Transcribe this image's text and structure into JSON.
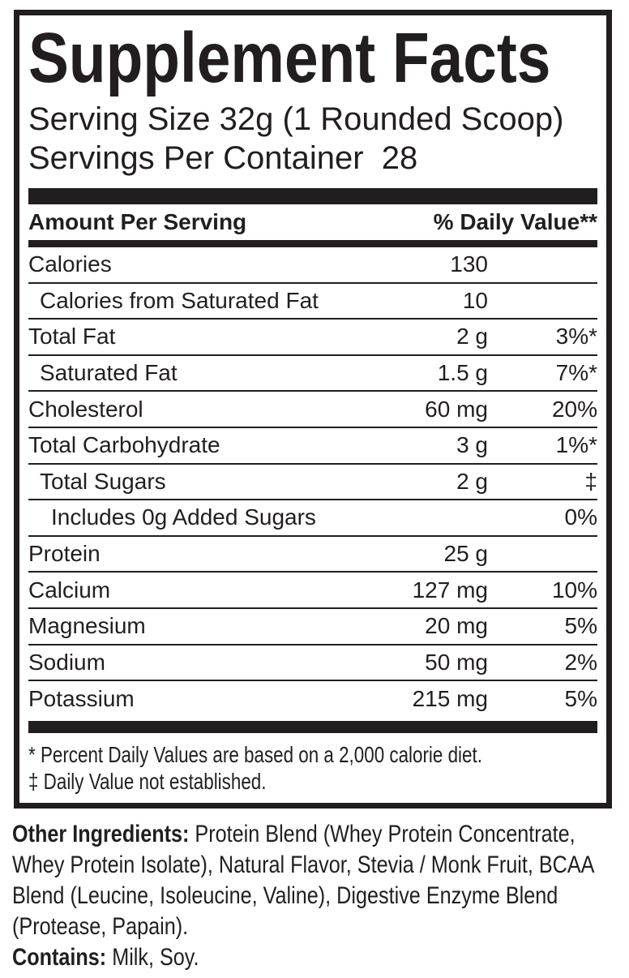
{
  "panel": {
    "title": "Supplement Facts",
    "serving_size_line": "Serving Size 32g (1 Rounded Scoop)",
    "servings_per_container_line": "Servings Per Container  28",
    "column_headers": {
      "amount": "Amount Per Serving",
      "daily_value": "% Daily Value**"
    },
    "table": {
      "rows": [
        {
          "name": "Calories",
          "amount": "130",
          "dv": "",
          "indent": 0
        },
        {
          "name": "Calories from Saturated Fat",
          "amount": "10",
          "dv": "",
          "indent": 1
        },
        {
          "name": "Total Fat",
          "amount": "2 g",
          "dv": "3%*",
          "indent": 0
        },
        {
          "name": "Saturated Fat",
          "amount": "1.5 g",
          "dv": "7%*",
          "indent": 1
        },
        {
          "name": "Cholesterol",
          "amount": "60 mg",
          "dv": "20%",
          "indent": 0
        },
        {
          "name": "Total Carbohydrate",
          "amount": "3 g",
          "dv": "1%*",
          "indent": 0
        },
        {
          "name": "Total Sugars",
          "amount": "2 g",
          "dv": "‡",
          "indent": 1
        },
        {
          "name": "Includes 0g Added Sugars",
          "amount": "",
          "dv": "0%",
          "indent": 2
        },
        {
          "name": "Protein",
          "amount": "25 g",
          "dv": "",
          "indent": 0
        },
        {
          "name": "Calcium",
          "amount": "127 mg",
          "dv": "10%",
          "indent": 0
        },
        {
          "name": "Magnesium",
          "amount": "20 mg",
          "dv": "5%",
          "indent": 0
        },
        {
          "name": "Sodium",
          "amount": "50 mg",
          "dv": "2%",
          "indent": 0
        },
        {
          "name": "Potassium",
          "amount": "215 mg",
          "dv": "5%",
          "indent": 0
        }
      ]
    },
    "footnotes": [
      "* Percent Daily Values are based on a 2,000 calorie diet.",
      "‡ Daily Value not established."
    ]
  },
  "other_ingredients": {
    "label": "Other Ingredients:",
    "text": " Protein Blend (Whey Protein Concentrate, Whey Protein Isolate), Natural Flavor, Stevia / Monk Fruit, BCAA Blend (Leucine, Isoleucine, Valine), Digestive Enzyme Blend (Protease, Papain)."
  },
  "contains": {
    "label": "Contains:",
    "text": " Milk, Soy."
  },
  "colors": {
    "ink": "#221e1f",
    "background": "#ffffff"
  }
}
